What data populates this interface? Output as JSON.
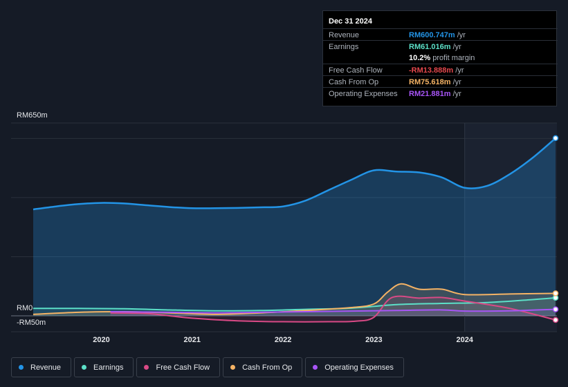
{
  "tooltip": {
    "date": "Dec 31 2024",
    "rows": [
      {
        "label": "Revenue",
        "value": "RM600.747m",
        "unit": "/yr",
        "color": "#2394e6"
      },
      {
        "label": "Earnings",
        "value": "RM61.016m",
        "unit": "/yr",
        "color": "#5ce0c8"
      },
      {
        "sub_value": "10.2%",
        "sub_text": "profit margin"
      },
      {
        "label": "Free Cash Flow",
        "value": "-RM13.888m",
        "unit": "/yr",
        "color": "#e5484d"
      },
      {
        "label": "Cash From Op",
        "value": "RM75.618m",
        "unit": "/yr",
        "color": "#f5b365"
      },
      {
        "label": "Operating Expenses",
        "value": "RM21.881m",
        "unit": "/yr",
        "color": "#a855f7"
      }
    ]
  },
  "chart_data": {
    "type": "area",
    "x_ticks": [
      "2020",
      "2021",
      "2022",
      "2023",
      "2024"
    ],
    "y_ticks": [
      "RM650m",
      "RM0",
      "-RM50m"
    ],
    "ylim": [
      -50,
      650
    ],
    "xlim": [
      2019.1,
      2025.0
    ],
    "past_start": 2024.0,
    "series": [
      {
        "name": "Revenue",
        "color": "#2394e6",
        "x": [
          2019.25,
          2019.5,
          2019.75,
          2020.0,
          2020.25,
          2020.5,
          2020.75,
          2021.0,
          2021.25,
          2021.5,
          2021.75,
          2022.0,
          2022.25,
          2022.5,
          2022.75,
          2023.0,
          2023.25,
          2023.5,
          2023.75,
          2024.0,
          2024.25,
          2024.5,
          2024.75,
          2025.0
        ],
        "y": [
          360,
          370,
          378,
          382,
          380,
          374,
          368,
          364,
          364,
          365,
          367,
          370,
          390,
          425,
          460,
          492,
          488,
          485,
          468,
          433,
          440,
          480,
          535,
          601
        ]
      },
      {
        "name": "Earnings",
        "color": "#5ce0c8",
        "x": [
          2019.25,
          2019.75,
          2020.25,
          2020.75,
          2021.25,
          2021.75,
          2022.25,
          2022.75,
          2023.25,
          2023.75,
          2024.25,
          2024.75,
          2025.0
        ],
        "y": [
          25,
          25,
          24,
          20,
          17,
          18,
          22,
          26,
          38,
          42,
          45,
          55,
          61
        ]
      },
      {
        "name": "Free Cash Flow",
        "color": "#d94a86",
        "x": [
          2020.1,
          2020.5,
          2020.75,
          2021.0,
          2021.5,
          2022.0,
          2022.5,
          2022.8,
          2023.0,
          2023.2,
          2023.5,
          2023.75,
          2024.0,
          2024.5,
          2025.0
        ],
        "y": [
          10,
          8,
          0,
          -8,
          -17,
          -20,
          -20,
          -18,
          -5,
          62,
          60,
          62,
          50,
          25,
          -14
        ]
      },
      {
        "name": "Cash From Op",
        "color": "#f5b365",
        "x": [
          2019.25,
          2019.75,
          2020.25,
          2020.75,
          2021.25,
          2021.75,
          2022.25,
          2022.75,
          2023.0,
          2023.15,
          2023.3,
          2023.5,
          2023.75,
          2024.0,
          2024.5,
          2025.0
        ],
        "y": [
          5,
          12,
          14,
          10,
          5,
          10,
          18,
          28,
          40,
          80,
          108,
          90,
          90,
          72,
          74,
          76
        ]
      },
      {
        "name": "Operating Expenses",
        "color": "#a855f7",
        "x": [
          2020.1,
          2020.75,
          2021.25,
          2021.75,
          2022.25,
          2022.75,
          2023.25,
          2023.75,
          2024.0,
          2024.5,
          2025.0
        ],
        "y": [
          14,
          12,
          10,
          12,
          14,
          16,
          18,
          20,
          16,
          17,
          22
        ]
      }
    ]
  },
  "legend": [
    "Revenue",
    "Earnings",
    "Free Cash Flow",
    "Cash From Op",
    "Operating Expenses"
  ]
}
